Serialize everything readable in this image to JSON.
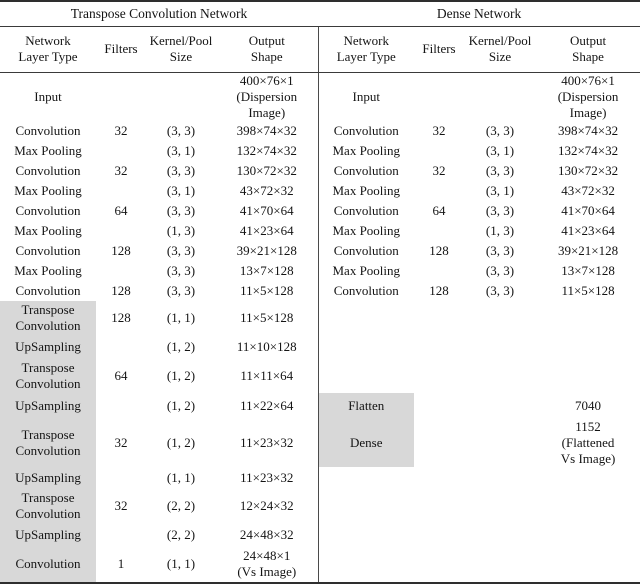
{
  "page": {
    "highlight_color": "#d8d8d8",
    "background": "#ffffff"
  },
  "left_table": {
    "title": "Transpose Convolution Network",
    "columns": [
      [
        "Network",
        "Layer Type"
      ],
      [
        "Filters"
      ],
      [
        "Kernel/Pool",
        "Size"
      ],
      [
        "Output",
        "Shape"
      ]
    ],
    "rows": [
      {
        "layer": "Input",
        "filters": "",
        "kernel": "",
        "output": [
          "400×76×1",
          "(Dispersion",
          "Image)"
        ],
        "highlight": false
      },
      {
        "layer": "Convolution",
        "filters": "32",
        "kernel": "(3, 3)",
        "output": [
          "398×74×32"
        ],
        "highlight": false
      },
      {
        "layer": "Max Pooling",
        "filters": "",
        "kernel": "(3, 1)",
        "output": [
          "132×74×32"
        ],
        "highlight": false
      },
      {
        "layer": "Convolution",
        "filters": "32",
        "kernel": "(3, 3)",
        "output": [
          "130×72×32"
        ],
        "highlight": false
      },
      {
        "layer": "Max Pooling",
        "filters": "",
        "kernel": "(3, 1)",
        "output": [
          "43×72×32"
        ],
        "highlight": false
      },
      {
        "layer": "Convolution",
        "filters": "64",
        "kernel": "(3, 3)",
        "output": [
          "41×70×64"
        ],
        "highlight": false
      },
      {
        "layer": "Max Pooling",
        "filters": "",
        "kernel": "(1, 3)",
        "output": [
          "41×23×64"
        ],
        "highlight": false
      },
      {
        "layer": "Convolution",
        "filters": "128",
        "kernel": "(3, 3)",
        "output": [
          "39×21×128"
        ],
        "highlight": false
      },
      {
        "layer": "Max Pooling",
        "filters": "",
        "kernel": "(3, 3)",
        "output": [
          "13×7×128"
        ],
        "highlight": false
      },
      {
        "layer": "Convolution",
        "filters": "128",
        "kernel": "(3, 3)",
        "output": [
          "11×5×128"
        ],
        "highlight": false
      },
      {
        "layer": [
          "Transpose",
          "Convolution"
        ],
        "filters": "128",
        "kernel": "(1, 1)",
        "output": [
          "11×5×128"
        ],
        "highlight": true
      },
      {
        "layer": "UpSampling",
        "filters": "",
        "kernel": "(1, 2)",
        "output": [
          "11×10×128"
        ],
        "highlight": true
      },
      {
        "layer": [
          "Transpose",
          "Convolution"
        ],
        "filters": "64",
        "kernel": "(1, 2)",
        "output": [
          "11×11×64"
        ],
        "highlight": true
      },
      {
        "layer": "UpSampling",
        "filters": "",
        "kernel": "(1, 2)",
        "output": [
          "11×22×64"
        ],
        "highlight": true
      },
      {
        "layer": [
          "Transpose",
          "Convolution"
        ],
        "filters": "32",
        "kernel": "(1, 2)",
        "output": [
          "11×23×32"
        ],
        "highlight": true
      },
      {
        "layer": "UpSampling",
        "filters": "",
        "kernel": "(1, 1)",
        "output": [
          "11×23×32"
        ],
        "highlight": true
      },
      {
        "layer": [
          "Transpose",
          "Convolution"
        ],
        "filters": "32",
        "kernel": "(2, 2)",
        "output": [
          "12×24×32"
        ],
        "highlight": true
      },
      {
        "layer": "UpSampling",
        "filters": "",
        "kernel": "(2, 2)",
        "output": [
          "24×48×32"
        ],
        "highlight": true
      },
      {
        "layer": "Convolution",
        "filters": "1",
        "kernel": "(1, 1)",
        "output": [
          "24×48×1",
          "(Vs Image)"
        ],
        "highlight": true
      }
    ]
  },
  "right_table": {
    "title": "Dense Network",
    "columns": [
      [
        "Network",
        "Layer Type"
      ],
      [
        "Filters"
      ],
      [
        "Kernel/Pool",
        "Size"
      ],
      [
        "Output",
        "Shape"
      ]
    ],
    "rows": [
      {
        "layer": "Input",
        "filters": "",
        "kernel": "",
        "output": [
          "400×76×1",
          "(Dispersion",
          "Image)"
        ],
        "highlight": false
      },
      {
        "layer": "Convolution",
        "filters": "32",
        "kernel": "(3, 3)",
        "output": [
          "398×74×32"
        ],
        "highlight": false
      },
      {
        "layer": "Max Pooling",
        "filters": "",
        "kernel": "(3, 1)",
        "output": [
          "132×74×32"
        ],
        "highlight": false
      },
      {
        "layer": "Convolution",
        "filters": "32",
        "kernel": "(3, 3)",
        "output": [
          "130×72×32"
        ],
        "highlight": false
      },
      {
        "layer": "Max Pooling",
        "filters": "",
        "kernel": "(3, 1)",
        "output": [
          "43×72×32"
        ],
        "highlight": false
      },
      {
        "layer": "Convolution",
        "filters": "64",
        "kernel": "(3, 3)",
        "output": [
          "41×70×64"
        ],
        "highlight": false
      },
      {
        "layer": "Max Pooling",
        "filters": "",
        "kernel": "(1, 3)",
        "output": [
          "41×23×64"
        ],
        "highlight": false
      },
      {
        "layer": "Convolution",
        "filters": "128",
        "kernel": "(3, 3)",
        "output": [
          "39×21×128"
        ],
        "highlight": false
      },
      {
        "layer": "Max Pooling",
        "filters": "",
        "kernel": "(3, 3)",
        "output": [
          "13×7×128"
        ],
        "highlight": false
      },
      {
        "layer": "Convolution",
        "filters": "128",
        "kernel": "(3, 3)",
        "output": [
          "11×5×128"
        ],
        "highlight": false
      },
      {
        "layer": "",
        "filters": "",
        "kernel": "",
        "output": [
          ""
        ],
        "highlight": false
      },
      {
        "layer": "",
        "filters": "",
        "kernel": "",
        "output": [
          ""
        ],
        "highlight": false
      },
      {
        "layer": "",
        "filters": "",
        "kernel": "",
        "output": [
          ""
        ],
        "highlight": false
      },
      {
        "layer": "Flatten",
        "filters": "",
        "kernel": "",
        "output": [
          "7040"
        ],
        "highlight": true
      },
      {
        "layer": "Dense",
        "filters": "",
        "kernel": "",
        "output": [
          "1152",
          "(Flattened",
          "Vs Image)"
        ],
        "highlight": true
      },
      {
        "layer": "",
        "filters": "",
        "kernel": "",
        "output": [
          ""
        ],
        "highlight": false
      },
      {
        "layer": "",
        "filters": "",
        "kernel": "",
        "output": [
          ""
        ],
        "highlight": false
      },
      {
        "layer": "",
        "filters": "",
        "kernel": "",
        "output": [
          ""
        ],
        "highlight": false
      },
      {
        "layer": "",
        "filters": "",
        "kernel": "",
        "output": [
          ""
        ],
        "highlight": false
      }
    ]
  }
}
